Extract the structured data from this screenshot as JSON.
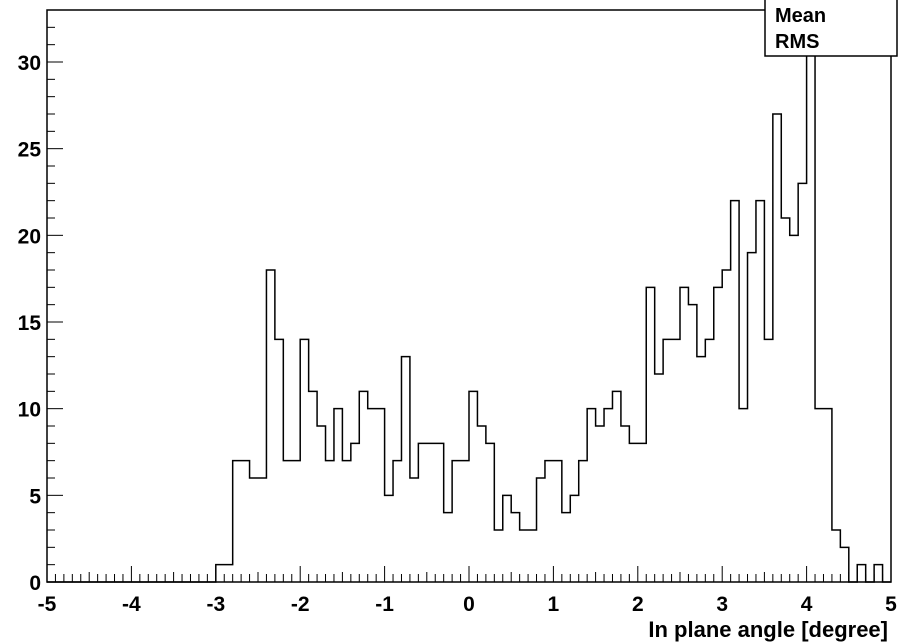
{
  "chart_data": {
    "type": "bar",
    "subtype": "step-histogram",
    "xlabel": "In plane angle [degree]",
    "ylabel": "",
    "xlim": [
      -5,
      5
    ],
    "ylim": [
      0,
      33
    ],
    "x_ticks": [
      -5,
      -4,
      -3,
      -2,
      -1,
      0,
      1,
      2,
      3,
      4,
      5
    ],
    "y_ticks": [
      0,
      5,
      10,
      15,
      20,
      25,
      30
    ],
    "x_tick_labels": [
      "-5",
      "-4",
      "-3",
      "-2",
      "-1",
      "0",
      "1",
      "2",
      "3",
      "4",
      "5"
    ],
    "y_tick_labels": [
      "0",
      "5",
      "10",
      "15",
      "20",
      "25",
      "30"
    ],
    "bin_width": 0.1,
    "bin_edges_start": -5.0,
    "counts": [
      0,
      0,
      0,
      0,
      0,
      0,
      0,
      0,
      0,
      0,
      0,
      0,
      0,
      0,
      0,
      0,
      0,
      0,
      0,
      0,
      1,
      1,
      7,
      7,
      6,
      6,
      18,
      14,
      7,
      7,
      14,
      11,
      9,
      7,
      10,
      7,
      8,
      11,
      10,
      10,
      5,
      7,
      13,
      6,
      8,
      8,
      8,
      4,
      7,
      7,
      11,
      9,
      8,
      3,
      5,
      4,
      3,
      3,
      6,
      7,
      7,
      4,
      5,
      7,
      10,
      9,
      10,
      11,
      9,
      8,
      8,
      17,
      12,
      14,
      14,
      17,
      16,
      13,
      14,
      17,
      18,
      22,
      10,
      19,
      22,
      14,
      27,
      21,
      20,
      23,
      33,
      10,
      10,
      3,
      2,
      0,
      1,
      0,
      1,
      0
    ],
    "line_color": "#000000",
    "grid": false,
    "stats_box": {
      "position": "top-right",
      "labels": [
        "Mean",
        "RMS"
      ]
    }
  }
}
